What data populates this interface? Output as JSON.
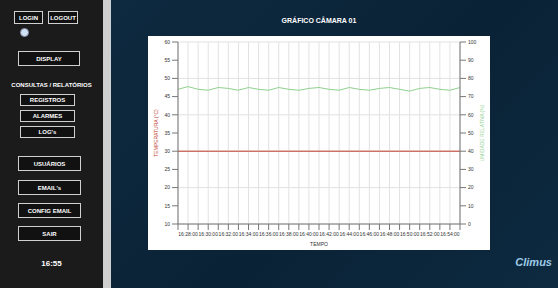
{
  "header": {
    "title": "GRÁFICO CÂMARA 01"
  },
  "sidebar": {
    "session": [
      "LOGIN",
      "LOGOUT"
    ],
    "display": "DISPLAY",
    "section": "CONSULTAS / RELATÓRIOS",
    "reports": [
      "REGISTROS",
      "ALARMES",
      "LOG's"
    ],
    "admin": [
      "USUÁRIOS",
      "EMAIL's",
      "CONFIG EMAIL",
      "SAIR"
    ],
    "clock": "16:55"
  },
  "brand": "Climus",
  "chart_data": {
    "type": "line",
    "title": "GRÁFICO CÂMARA 01",
    "x_label": "TEMPO",
    "y_label": "TEMPERATURA (°C)",
    "y2_label": "UMIDADE RELATIVA (%)",
    "categories": [
      null,
      "16:28:00",
      null,
      "16:30:00",
      null,
      "16:32:00",
      null,
      "16:34:00",
      null,
      "16:36:00",
      null,
      "16:38:00",
      null,
      "16:40:00",
      null,
      "16:42:00",
      null,
      "16:44:00",
      null,
      "16:46:00",
      null,
      "16:48:00",
      null,
      "16:50:00",
      null,
      "16:52:00",
      null,
      "16:54:00",
      null
    ],
    "series": [
      {
        "color": "#c0392b",
        "values": [
          30,
          30,
          30,
          30,
          30,
          30,
          30,
          30,
          30,
          30,
          30,
          30,
          30,
          30,
          30,
          30,
          30,
          30,
          30,
          30,
          30,
          30,
          30,
          30,
          30,
          30,
          30,
          30,
          30
        ]
      },
      {
        "color": "#8fd18f",
        "axis": "y2",
        "values": [
          74,
          75.5,
          74,
          73.5,
          75,
          74.5,
          73.5,
          75,
          74,
          73.5,
          75,
          74,
          73.5,
          74.5,
          75,
          74,
          73.5,
          75,
          74,
          73.5,
          74.5,
          75,
          74,
          73,
          74.5,
          75,
          74,
          73.5,
          75
        ]
      }
    ],
    "ylim": [
      10,
      60
    ],
    "yticks": [
      10,
      15,
      20,
      25,
      30,
      35,
      40,
      45,
      50,
      55,
      60
    ],
    "y2lim": [
      0,
      100
    ],
    "y2ticks": [
      0,
      10,
      20,
      30,
      40,
      50,
      60,
      70,
      80,
      90,
      100
    ],
    "grid": true
  }
}
